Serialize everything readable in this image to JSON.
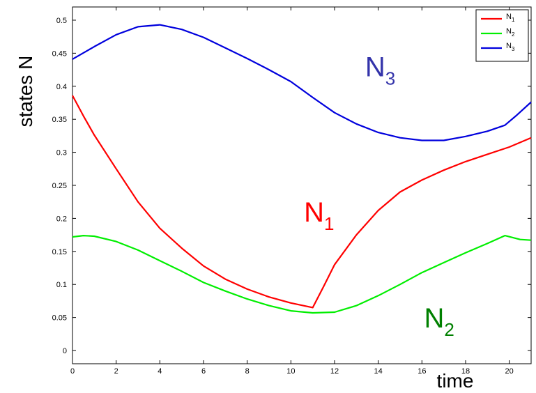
{
  "chart_data": {
    "type": "line",
    "xlabel": "time",
    "ylabel": "states N",
    "xlim": [
      0,
      21
    ],
    "ylim": [
      -0.02,
      0.52
    ],
    "xticks": [
      "0",
      "2",
      "4",
      "6",
      "8",
      "10",
      "12",
      "14",
      "16",
      "18",
      "20"
    ],
    "yticks": [
      "0",
      "0.05",
      "0.1",
      "0.15",
      "0.2",
      "0.25",
      "0.3",
      "0.35",
      "0.4",
      "0.45",
      "0.5"
    ],
    "grid": false,
    "legend_position": "top-right",
    "series": [
      {
        "name": "N",
        "subscript": "1",
        "color": "#ff0000",
        "x": [
          0,
          0.5,
          1,
          2,
          3,
          4,
          5,
          6,
          7,
          8,
          9,
          10,
          11,
          11.5,
          12,
          13,
          14,
          15,
          16,
          17,
          18,
          19,
          20,
          21
        ],
        "y": [
          0.386,
          0.355,
          0.326,
          0.275,
          0.225,
          0.185,
          0.155,
          0.128,
          0.108,
          0.093,
          0.081,
          0.072,
          0.065,
          0.097,
          0.13,
          0.175,
          0.212,
          0.24,
          0.258,
          0.273,
          0.286,
          0.297,
          0.308,
          0.322
        ]
      },
      {
        "name": "N",
        "subscript": "2",
        "color": "#00ee00",
        "x": [
          0,
          0.5,
          1,
          2,
          3,
          4,
          5,
          6,
          7,
          8,
          9,
          10,
          11,
          12,
          13,
          14,
          15,
          16,
          17,
          18,
          19,
          19.8,
          20.5,
          21
        ],
        "y": [
          0.172,
          0.174,
          0.173,
          0.165,
          0.152,
          0.136,
          0.12,
          0.103,
          0.09,
          0.078,
          0.068,
          0.06,
          0.057,
          0.058,
          0.068,
          0.083,
          0.1,
          0.118,
          0.133,
          0.148,
          0.162,
          0.174,
          0.168,
          0.167
        ]
      },
      {
        "name": "N",
        "subscript": "3",
        "color": "#0000dd",
        "x": [
          0,
          1,
          2,
          3,
          4,
          5,
          6,
          7,
          8,
          9,
          10,
          11,
          12,
          13,
          14,
          15,
          16,
          17,
          18,
          19,
          19.8,
          20.3,
          21
        ],
        "y": [
          0.441,
          0.46,
          0.478,
          0.49,
          0.493,
          0.486,
          0.474,
          0.458,
          0.442,
          0.425,
          0.407,
          0.383,
          0.36,
          0.343,
          0.33,
          0.322,
          0.318,
          0.318,
          0.324,
          0.332,
          0.341,
          0.355,
          0.376
        ]
      }
    ],
    "annotations": [
      {
        "text": "N",
        "subscript": "1",
        "color": "#ff0000",
        "x": 10.6,
        "y": 0.195
      },
      {
        "text": "N",
        "subscript": "2",
        "color": "#008000",
        "x": 16.1,
        "y": 0.035
      },
      {
        "text": "N",
        "subscript": "3",
        "color": "#3333aa",
        "x": 13.4,
        "y": 0.415
      }
    ]
  }
}
